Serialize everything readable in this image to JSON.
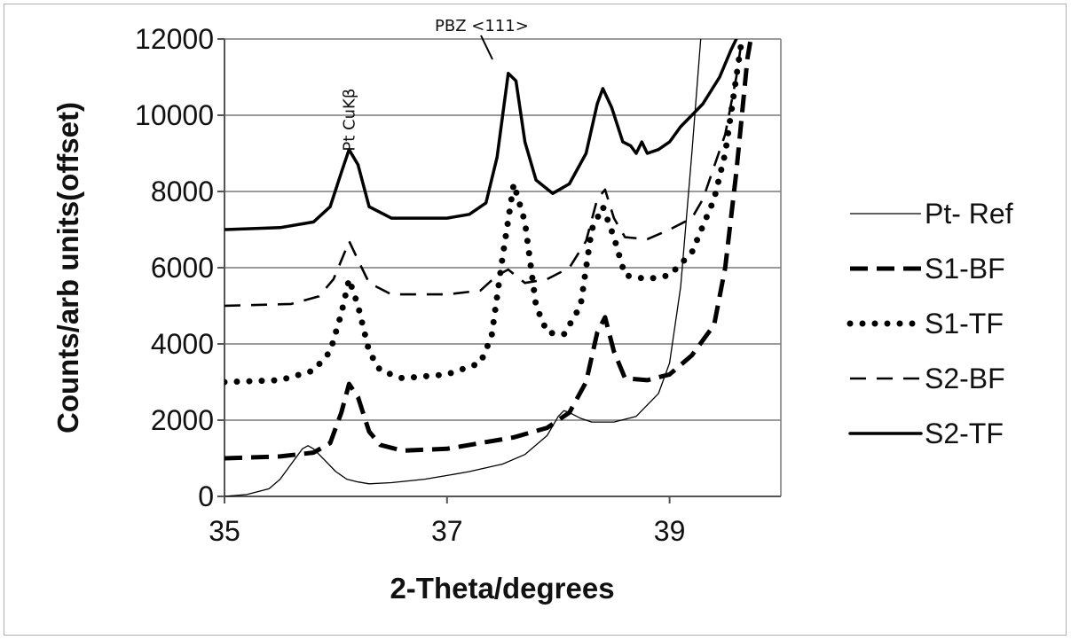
{
  "chart_data": {
    "type": "line",
    "title": "",
    "xlabel": "2-Theta/degrees",
    "ylabel": "Counts/arb units(offset)",
    "xlim": [
      35,
      40
    ],
    "ylim": [
      0,
      12000
    ],
    "x_ticks": [
      35,
      37,
      39
    ],
    "y_ticks": [
      0,
      2000,
      4000,
      6000,
      8000,
      10000,
      12000
    ],
    "x_tick_labels": [
      "35",
      "37",
      "39"
    ],
    "y_tick_labels": [
      "0",
      "2000",
      "4000",
      "6000",
      "8000",
      "10000",
      "12000"
    ],
    "grid": "horizontal",
    "legend_position": "right",
    "annotations": [
      {
        "text": "Pt CuKβ",
        "x": 36.12,
        "y": 9800
      },
      {
        "text": "PBZ <111>",
        "x": 37.6,
        "y": 12000
      }
    ],
    "series": [
      {
        "name": "Pt- Ref",
        "style": "thin",
        "points": [
          [
            35.0,
            0
          ],
          [
            35.2,
            50
          ],
          [
            35.4,
            200
          ],
          [
            35.5,
            450
          ],
          [
            35.6,
            850
          ],
          [
            35.7,
            1250
          ],
          [
            35.75,
            1330
          ],
          [
            35.8,
            1250
          ],
          [
            35.9,
            950
          ],
          [
            36.0,
            650
          ],
          [
            36.1,
            450
          ],
          [
            36.2,
            380
          ],
          [
            36.3,
            330
          ],
          [
            36.5,
            360
          ],
          [
            36.8,
            450
          ],
          [
            37.0,
            550
          ],
          [
            37.2,
            650
          ],
          [
            37.5,
            850
          ],
          [
            37.7,
            1100
          ],
          [
            37.9,
            1600
          ],
          [
            38.0,
            2100
          ],
          [
            38.05,
            2250
          ],
          [
            38.1,
            2200
          ],
          [
            38.2,
            2050
          ],
          [
            38.3,
            1950
          ],
          [
            38.5,
            1950
          ],
          [
            38.7,
            2100
          ],
          [
            38.9,
            2700
          ],
          [
            39.0,
            3500
          ],
          [
            39.1,
            5500
          ],
          [
            39.2,
            9000
          ],
          [
            39.28,
            12000
          ]
        ]
      },
      {
        "name": "S1-BF",
        "style": "heavy-dash",
        "points": [
          [
            35.0,
            1000
          ],
          [
            35.5,
            1050
          ],
          [
            35.8,
            1150
          ],
          [
            35.95,
            1400
          ],
          [
            36.05,
            2200
          ],
          [
            36.12,
            2950
          ],
          [
            36.2,
            2600
          ],
          [
            36.3,
            1700
          ],
          [
            36.4,
            1350
          ],
          [
            36.6,
            1200
          ],
          [
            37.0,
            1250
          ],
          [
            37.3,
            1400
          ],
          [
            37.6,
            1550
          ],
          [
            37.9,
            1800
          ],
          [
            38.1,
            2200
          ],
          [
            38.25,
            3000
          ],
          [
            38.35,
            4300
          ],
          [
            38.42,
            4700
          ],
          [
            38.5,
            3800
          ],
          [
            38.6,
            3100
          ],
          [
            38.8,
            3050
          ],
          [
            39.0,
            3200
          ],
          [
            39.2,
            3700
          ],
          [
            39.4,
            4500
          ],
          [
            39.5,
            6000
          ],
          [
            39.6,
            8500
          ],
          [
            39.7,
            11500
          ],
          [
            39.73,
            12000
          ]
        ]
      },
      {
        "name": "S1-TF",
        "style": "dotted",
        "points": [
          [
            35.0,
            3000
          ],
          [
            35.5,
            3050
          ],
          [
            35.8,
            3300
          ],
          [
            35.95,
            3800
          ],
          [
            36.05,
            4800
          ],
          [
            36.12,
            5700
          ],
          [
            36.2,
            5000
          ],
          [
            36.3,
            3800
          ],
          [
            36.4,
            3300
          ],
          [
            36.6,
            3100
          ],
          [
            37.0,
            3200
          ],
          [
            37.3,
            3500
          ],
          [
            37.4,
            4200
          ],
          [
            37.5,
            6300
          ],
          [
            37.6,
            8200
          ],
          [
            37.7,
            7200
          ],
          [
            37.8,
            5000
          ],
          [
            37.9,
            4300
          ],
          [
            38.05,
            4250
          ],
          [
            38.2,
            5000
          ],
          [
            38.3,
            7000
          ],
          [
            38.4,
            7600
          ],
          [
            38.5,
            6800
          ],
          [
            38.6,
            5800
          ],
          [
            38.8,
            5700
          ],
          [
            39.0,
            5800
          ],
          [
            39.2,
            6400
          ],
          [
            39.4,
            7800
          ],
          [
            39.5,
            9000
          ],
          [
            39.6,
            11000
          ],
          [
            39.65,
            12000
          ]
        ]
      },
      {
        "name": "S2-BF",
        "style": "dash",
        "points": [
          [
            35.0,
            5000
          ],
          [
            35.6,
            5050
          ],
          [
            35.85,
            5250
          ],
          [
            35.98,
            5700
          ],
          [
            36.08,
            6400
          ],
          [
            36.12,
            6700
          ],
          [
            36.2,
            6200
          ],
          [
            36.3,
            5600
          ],
          [
            36.5,
            5300
          ],
          [
            37.0,
            5300
          ],
          [
            37.3,
            5400
          ],
          [
            37.45,
            5800
          ],
          [
            37.55,
            5950
          ],
          [
            37.7,
            5600
          ],
          [
            37.9,
            5700
          ],
          [
            38.1,
            6000
          ],
          [
            38.25,
            6700
          ],
          [
            38.35,
            7800
          ],
          [
            38.42,
            8050
          ],
          [
            38.5,
            7300
          ],
          [
            38.6,
            6800
          ],
          [
            38.8,
            6750
          ],
          [
            39.0,
            7000
          ],
          [
            39.2,
            7300
          ],
          [
            39.3,
            7800
          ],
          [
            39.5,
            9500
          ],
          [
            39.6,
            11000
          ],
          [
            39.65,
            12000
          ]
        ]
      },
      {
        "name": "S2-TF",
        "style": "solid",
        "points": [
          [
            35.0,
            7000
          ],
          [
            35.5,
            7050
          ],
          [
            35.8,
            7200
          ],
          [
            35.95,
            7600
          ],
          [
            36.05,
            8500
          ],
          [
            36.12,
            9100
          ],
          [
            36.2,
            8700
          ],
          [
            36.3,
            7600
          ],
          [
            36.5,
            7300
          ],
          [
            37.0,
            7300
          ],
          [
            37.2,
            7400
          ],
          [
            37.35,
            7700
          ],
          [
            37.45,
            8900
          ],
          [
            37.55,
            11100
          ],
          [
            37.62,
            10900
          ],
          [
            37.7,
            9300
          ],
          [
            37.8,
            8300
          ],
          [
            37.95,
            7950
          ],
          [
            38.1,
            8200
          ],
          [
            38.25,
            9000
          ],
          [
            38.35,
            10300
          ],
          [
            38.4,
            10700
          ],
          [
            38.48,
            10200
          ],
          [
            38.58,
            9300
          ],
          [
            38.65,
            9200
          ],
          [
            38.7,
            9000
          ],
          [
            38.75,
            9300
          ],
          [
            38.8,
            9000
          ],
          [
            38.9,
            9100
          ],
          [
            39.0,
            9300
          ],
          [
            39.1,
            9700
          ],
          [
            39.2,
            10000
          ],
          [
            39.3,
            10300
          ],
          [
            39.45,
            11000
          ],
          [
            39.55,
            11700
          ],
          [
            39.6,
            12000
          ]
        ]
      }
    ]
  }
}
